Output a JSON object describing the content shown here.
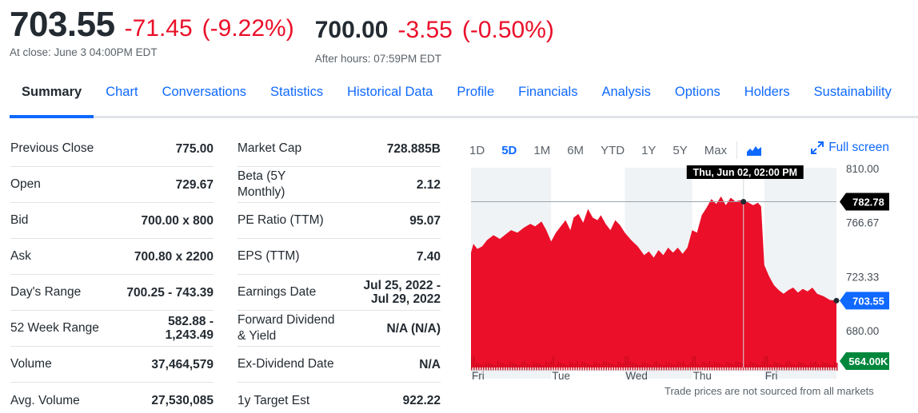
{
  "quote": {
    "close_price": "703.55",
    "close_change": "-71.45",
    "close_change_pct": "(-9.22%)",
    "close_label": "At close: June 3 04:00PM EDT",
    "after_price": "700.00",
    "after_change": "-3.55",
    "after_change_pct": "(-0.50%)",
    "after_label": "After hours: 07:59PM EDT"
  },
  "tabs": [
    {
      "label": "Summary",
      "active": true
    },
    {
      "label": "Chart"
    },
    {
      "label": "Conversations"
    },
    {
      "label": "Statistics"
    },
    {
      "label": "Historical Data"
    },
    {
      "label": "Profile"
    },
    {
      "label": "Financials"
    },
    {
      "label": "Analysis"
    },
    {
      "label": "Options"
    },
    {
      "label": "Holders"
    },
    {
      "label": "Sustainability"
    }
  ],
  "stats_left": [
    {
      "label": "Previous Close",
      "value": "775.00"
    },
    {
      "label": "Open",
      "value": "729.67"
    },
    {
      "label": "Bid",
      "value": "700.00 x 800"
    },
    {
      "label": "Ask",
      "value": "700.80 x 2200"
    },
    {
      "label": "Day's Range",
      "value": "700.25 - 743.39"
    },
    {
      "label": "52 Week Range",
      "value": "582.88 - 1,243.49"
    },
    {
      "label": "Volume",
      "value": "37,464,579"
    },
    {
      "label": "Avg. Volume",
      "value": "27,530,085"
    }
  ],
  "stats_right": [
    {
      "label": "Market Cap",
      "value": "728.885B"
    },
    {
      "label": "Beta (5Y Monthly)",
      "value": "2.12"
    },
    {
      "label": "PE Ratio (TTM)",
      "value": "95.07"
    },
    {
      "label": "EPS (TTM)",
      "value": "7.40"
    },
    {
      "label": "Earnings Date",
      "value": "Jul 25, 2022 - Jul 29, 2022"
    },
    {
      "label": "Forward Dividend & Yield",
      "value": "N/A (N/A)"
    },
    {
      "label": "Ex-Dividend Date",
      "value": "N/A"
    },
    {
      "label": "1y Target Est",
      "value": "922.22"
    }
  ],
  "chart": {
    "ranges": [
      {
        "label": "1D"
      },
      {
        "label": "5D",
        "active": true
      },
      {
        "label": "1M"
      },
      {
        "label": "6M"
      },
      {
        "label": "YTD"
      },
      {
        "label": "1Y"
      },
      {
        "label": "5Y"
      },
      {
        "label": "Max"
      }
    ],
    "chart_type_icon": "mountain-chart-icon",
    "fullscreen_label": "Full screen",
    "footnote": "Trade prices are not sourced from all markets",
    "colors": {
      "area": "#eb0f29",
      "accent": "#0f69ff",
      "shade": "#f0f3f5",
      "volume_badge": "#00873c"
    }
  },
  "chart_data": {
    "type": "area",
    "x": [
      "Fri",
      "Tue",
      "Wed",
      "Thu",
      "Fri"
    ],
    "ylim": [
      650,
      810
    ],
    "y_ticks": [
      "810.00",
      "766.67",
      "723.33",
      "680.00"
    ],
    "crosshair": {
      "label": "Thu, Jun 02, 02:00 PM",
      "value": "782.78"
    },
    "last_price": "703.55",
    "volume_label": "564.00K",
    "series": [
      {
        "values": [
          [
            0,
            742
          ],
          [
            3,
            749
          ],
          [
            8,
            745
          ],
          [
            14,
            747
          ],
          [
            20,
            752
          ],
          [
            28,
            756
          ],
          [
            36,
            753
          ],
          [
            44,
            757
          ],
          [
            50,
            760
          ],
          [
            58,
            758
          ],
          [
            66,
            762
          ],
          [
            74,
            765
          ],
          [
            80,
            763
          ],
          [
            88,
            767
          ],
          [
            94,
            760
          ],
          [
            100,
            751
          ],
          [
            106,
            758
          ],
          [
            112,
            763
          ],
          [
            118,
            768
          ],
          [
            124,
            760
          ],
          [
            128,
            770
          ],
          [
            134,
            773
          ],
          [
            140,
            766
          ],
          [
            146,
            777
          ],
          [
            152,
            770
          ],
          [
            158,
            768
          ],
          [
            162,
            772
          ],
          [
            168,
            765
          ],
          [
            174,
            760
          ],
          [
            180,
            768
          ],
          [
            186,
            764
          ],
          [
            192,
            758
          ],
          [
            200,
            752
          ],
          [
            208,
            747
          ],
          [
            216,
            740
          ],
          [
            222,
            743
          ],
          [
            228,
            738
          ],
          [
            234,
            744
          ],
          [
            240,
            740
          ],
          [
            246,
            746
          ],
          [
            252,
            742
          ],
          [
            258,
            746
          ],
          [
            264,
            741
          ],
          [
            270,
            746
          ],
          [
            276,
            760
          ],
          [
            282,
            758
          ],
          [
            288,
            772
          ],
          [
            294,
            778
          ],
          [
            300,
            785
          ],
          [
            306,
            781
          ],
          [
            312,
            787
          ],
          [
            318,
            780
          ],
          [
            324,
            786
          ],
          [
            330,
            783
          ],
          [
            336,
            784
          ],
          [
            340,
            782.78
          ],
          [
            344,
            783
          ],
          [
            352,
            780
          ],
          [
            358,
            782
          ],
          [
            362,
            779
          ],
          [
            366,
            732
          ],
          [
            372,
            723
          ],
          [
            378,
            716
          ],
          [
            384,
            712
          ],
          [
            390,
            709
          ],
          [
            396,
            712
          ],
          [
            402,
            714
          ],
          [
            408,
            710
          ],
          [
            414,
            713
          ],
          [
            420,
            711
          ],
          [
            426,
            714
          ],
          [
            432,
            709
          ],
          [
            440,
            707
          ],
          [
            448,
            704
          ],
          [
            456,
            703.55
          ]
        ]
      }
    ]
  }
}
